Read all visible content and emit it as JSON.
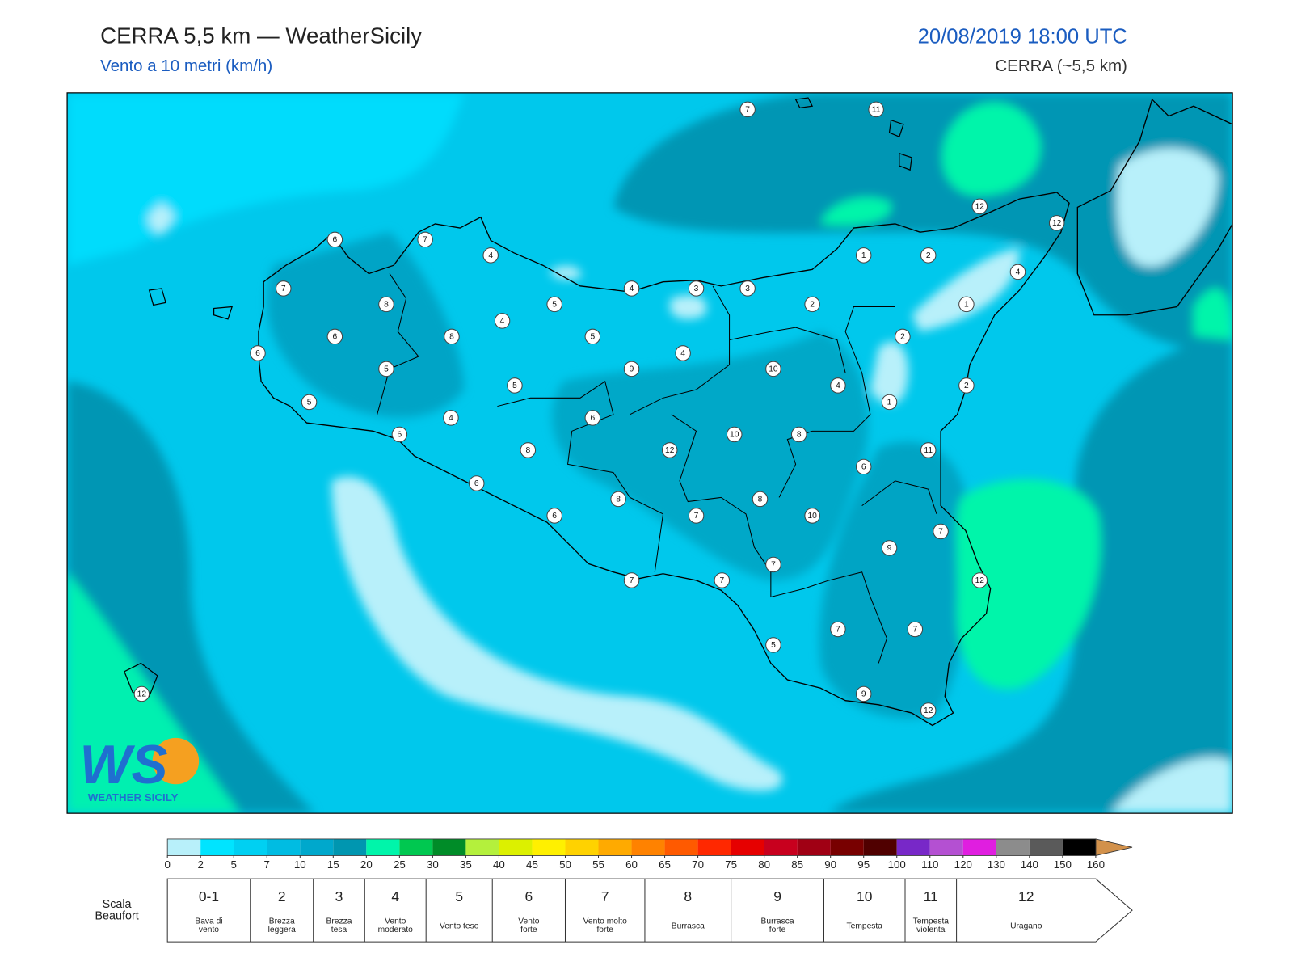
{
  "header": {
    "title": "CERRA 5,5 km — WeatherSicily",
    "subtitle": "Vento a 10 metri (km/h)",
    "datetime": "20/08/2019 18:00 UTC",
    "model": "CERRA (~5,5 km)"
  },
  "map_labels": [
    7,
    11,
    12,
    12,
    6,
    7,
    4,
    1,
    2,
    4,
    7,
    4,
    3,
    3,
    8,
    5,
    2,
    1,
    4,
    6,
    8,
    5,
    2,
    6,
    4,
    5,
    9,
    10,
    5,
    4,
    2,
    5,
    1,
    4,
    6,
    6,
    10,
    8,
    8,
    12,
    11,
    6,
    6,
    8,
    8,
    7,
    6,
    10,
    7,
    9,
    7,
    7,
    7,
    12,
    7,
    7,
    5,
    9,
    12,
    12
  ],
  "logo": {
    "text": "WS",
    "subtitle": "WEATHER SICILY"
  },
  "colorbar": {
    "ticks": [
      0,
      2,
      5,
      7,
      10,
      15,
      20,
      25,
      30,
      35,
      40,
      45,
      50,
      55,
      60,
      65,
      70,
      75,
      80,
      85,
      90,
      95,
      100,
      110,
      120,
      130,
      140,
      150,
      160
    ],
    "colors": [
      "#b8f0fa",
      "#00e4ff",
      "#00d0f2",
      "#00bce2",
      "#00a8cc",
      "#0096b0",
      "#00f5aa",
      "#00c850",
      "#008c28",
      "#b4f03c",
      "#dcf000",
      "#fff000",
      "#ffd200",
      "#ffaa00",
      "#ff8200",
      "#ff5a00",
      "#ff2800",
      "#e60000",
      "#c8001e",
      "#a00014",
      "#780000",
      "#500000",
      "#7828c8",
      "#b450d2",
      "#e01ee0",
      "#8c8c8c",
      "#5a5a5a",
      "#000000",
      "#8c4628",
      "#c88246"
    ],
    "extend_color": "#d2914b"
  },
  "beaufort": {
    "title": [
      "Scala",
      "Beaufort"
    ],
    "levels": [
      {
        "force": "0-1",
        "label": [
          "Bava di",
          "vento"
        ]
      },
      {
        "force": "2",
        "label": [
          "Brezza",
          "leggera"
        ]
      },
      {
        "force": "3",
        "label": [
          "Brezza",
          "tesa"
        ]
      },
      {
        "force": "4",
        "label": [
          "Vento",
          "moderato"
        ]
      },
      {
        "force": "5",
        "label": [
          "Vento teso"
        ]
      },
      {
        "force": "6",
        "label": [
          "Vento",
          "forte"
        ]
      },
      {
        "force": "7",
        "label": [
          "Vento molto",
          "forte"
        ]
      },
      {
        "force": "8",
        "label": [
          "Burrasca"
        ]
      },
      {
        "force": "9",
        "label": [
          "Burrasca",
          "forte"
        ]
      },
      {
        "force": "10",
        "label": [
          "Tempesta"
        ]
      },
      {
        "force": "11",
        "label": [
          "Tempesta",
          "violenta"
        ]
      },
      {
        "force": "12",
        "label": [
          "Uragano"
        ]
      }
    ]
  }
}
